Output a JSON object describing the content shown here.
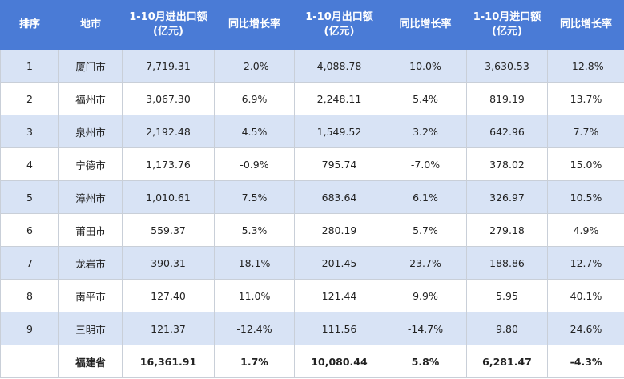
{
  "header": {
    "rank": "排序",
    "city": "地市",
    "total_line1": "1-10月进出口额",
    "total_line2": "(亿元)",
    "yoy1": "同比增长率",
    "export_line1": "1-10月出口额",
    "export_line2": "(亿元)",
    "yoy2": "同比增长率",
    "import_line1": "1-10月进口额",
    "import_line2": "(亿元)",
    "yoy3": "同比增长率"
  },
  "rows": [
    {
      "rank": "1",
      "city": "厦门市",
      "total": "7,719.31",
      "total_yoy": "-2.0%",
      "export": "4,088.78",
      "export_yoy": "10.0%",
      "import": "3,630.53",
      "import_yoy": "-12.8%"
    },
    {
      "rank": "2",
      "city": "福州市",
      "total": "3,067.30",
      "total_yoy": "6.9%",
      "export": "2,248.11",
      "export_yoy": "5.4%",
      "import": "819.19",
      "import_yoy": "13.7%"
    },
    {
      "rank": "3",
      "city": "泉州市",
      "total": "2,192.48",
      "total_yoy": "4.5%",
      "export": "1,549.52",
      "export_yoy": "3.2%",
      "import": "642.96",
      "import_yoy": "7.7%"
    },
    {
      "rank": "4",
      "city": "宁德市",
      "total": "1,173.76",
      "total_yoy": "-0.9%",
      "export": "795.74",
      "export_yoy": "-7.0%",
      "import": "378.02",
      "import_yoy": "15.0%"
    },
    {
      "rank": "5",
      "city": "漳州市",
      "total": "1,010.61",
      "total_yoy": "7.5%",
      "export": "683.64",
      "export_yoy": "6.1%",
      "import": "326.97",
      "import_yoy": "10.5%"
    },
    {
      "rank": "6",
      "city": "莆田市",
      "total": "559.37",
      "total_yoy": "5.3%",
      "export": "280.19",
      "export_yoy": "5.7%",
      "import": "279.18",
      "import_yoy": "4.9%"
    },
    {
      "rank": "7",
      "city": "龙岩市",
      "total": "390.31",
      "total_yoy": "18.1%",
      "export": "201.45",
      "export_yoy": "23.7%",
      "import": "188.86",
      "import_yoy": "12.7%"
    },
    {
      "rank": "8",
      "city": "南平市",
      "total": "127.40",
      "total_yoy": "11.0%",
      "export": "121.44",
      "export_yoy": "9.9%",
      "import": "5.95",
      "import_yoy": "40.1%"
    },
    {
      "rank": "9",
      "city": "三明市",
      "total": "121.37",
      "total_yoy": "-12.4%",
      "export": "111.56",
      "export_yoy": "-14.7%",
      "import": "9.80",
      "import_yoy": "24.6%"
    }
  ],
  "total_row": {
    "rank": "",
    "city": "福建省",
    "total": "16,361.91",
    "total_yoy": "1.7%",
    "export": "10,080.44",
    "export_yoy": "5.8%",
    "import": "6,281.47",
    "import_yoy": "-4.3%"
  },
  "colors": {
    "header_bg": "#4a7bd6",
    "stripe_bg": "#d8e3f5",
    "border": "#c9cfd8"
  }
}
